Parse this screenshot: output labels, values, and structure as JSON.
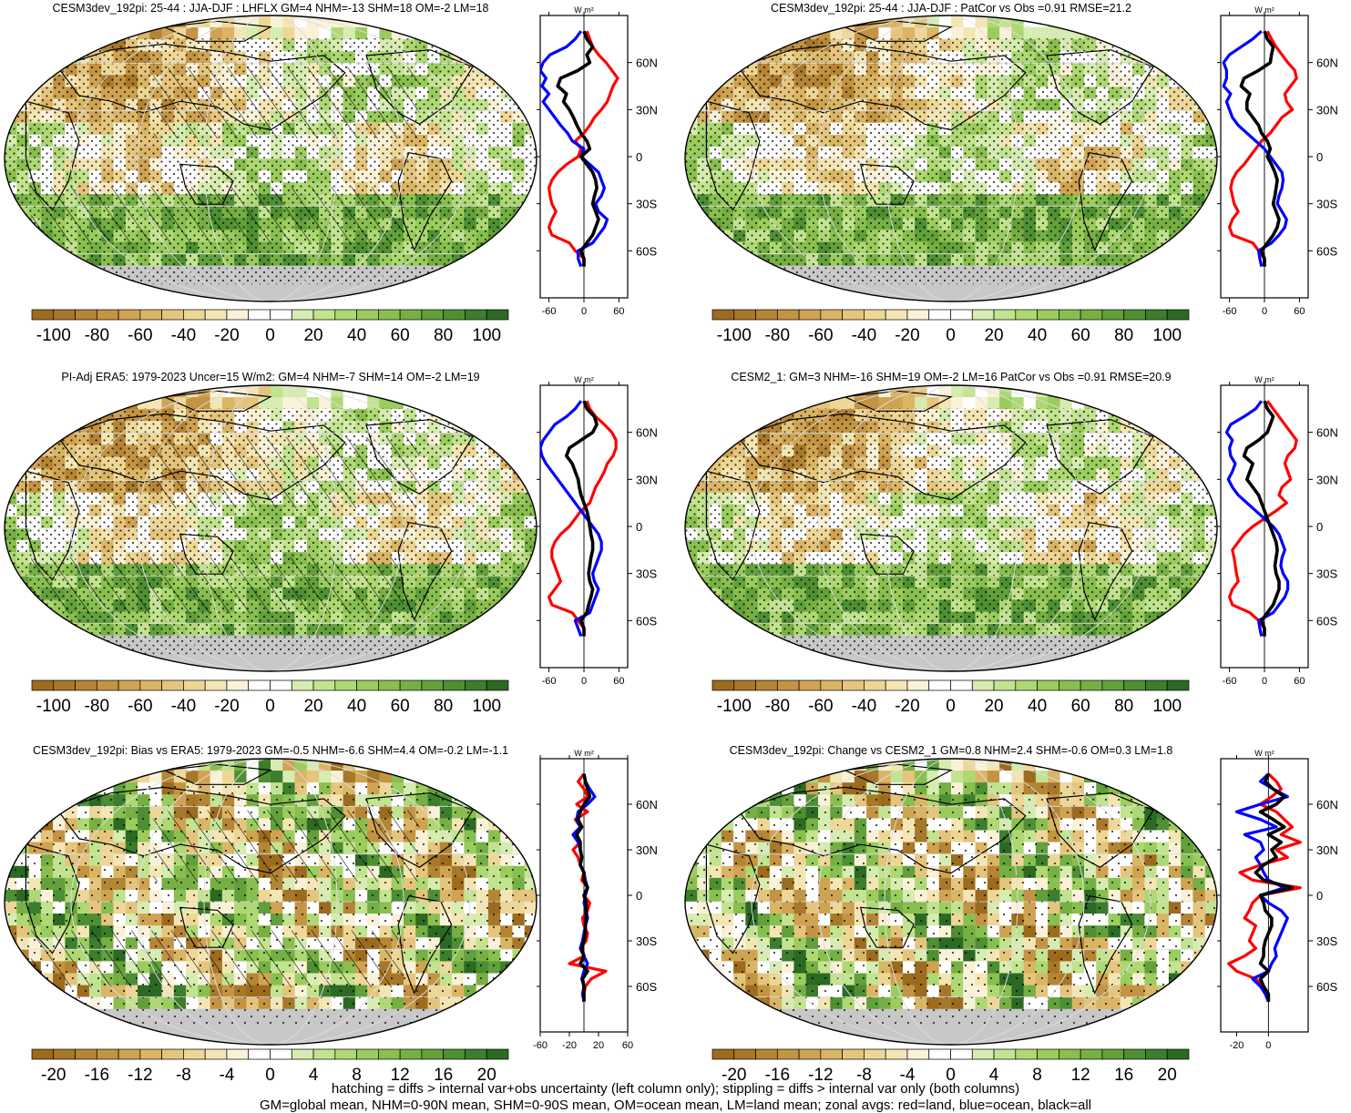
{
  "figure": {
    "footnote_line1": "hatching = diffs > internal var+obs uncertainty (left column only); stippling = diffs > internal var only (both columns)",
    "footnote_line2": "GM=global mean, NHM=0-90N mean, SHM=0-90S mean, OM=ocean mean, LM=land mean; zonal avgs: red=land, blue=ocean, black=all",
    "zonal_units": "W m²"
  },
  "colors": {
    "land_line": "#ff0000",
    "ocean_line": "#0000ff",
    "all_line": "#000000",
    "missing": "#c8c8c8",
    "palette": [
      "#9c6b1e",
      "#a8782a",
      "#b58536",
      "#c39443",
      "#cfa352",
      "#dab565",
      "#e5c57d",
      "#eed796",
      "#f4e6b4",
      "#faf2d8",
      "#ffffff",
      "#ffffff",
      "#d6ecb0",
      "#c2e38f",
      "#aed873",
      "#9bcc5e",
      "#89bf4f",
      "#76b044",
      "#62a03b",
      "#4e8f33",
      "#3c7e2c",
      "#2c6a24"
    ]
  },
  "chart_data": [
    {
      "type": "heatmap",
      "title": "CESM3dev_192pi: 25-44 : JJA-DJF : LHFLX GM=4 NHM=-13 SHM=18 OM=-2 LM=18",
      "hatching": true,
      "stipple": "dense",
      "colorbar": {
        "ticks": [
          "-100",
          "-80",
          "-60",
          "-40",
          "-20",
          "0",
          "20",
          "40",
          "60",
          "80",
          "100"
        ],
        "range": [
          -110,
          110
        ]
      },
      "zonal": {
        "xticks": [
          -60,
          0,
          60
        ],
        "xlim": [
          -75,
          75
        ],
        "yticks": [
          "60N",
          "30N",
          "0",
          "30S",
          "60S"
        ],
        "lat": [
          80,
          75,
          70,
          65,
          60,
          55,
          50,
          45,
          40,
          35,
          30,
          25,
          20,
          15,
          10,
          5,
          0,
          -5,
          -10,
          -15,
          -20,
          -25,
          -30,
          -35,
          -40,
          -45,
          -50,
          -55,
          -60,
          -65,
          -70
        ],
        "land": [
          5,
          10,
          15,
          25,
          38,
          48,
          58,
          50,
          45,
          40,
          30,
          18,
          10,
          0,
          -15,
          -5,
          -10,
          -30,
          -45,
          -55,
          -60,
          -58,
          -55,
          -48,
          -55,
          -60,
          -55,
          -25,
          -15,
          0,
          0
        ],
        "ocean": [
          -5,
          -15,
          -30,
          -58,
          -70,
          -75,
          -65,
          -72,
          -60,
          -70,
          -60,
          -50,
          -40,
          -28,
          -20,
          0,
          -5,
          10,
          25,
          30,
          35,
          30,
          20,
          25,
          40,
          35,
          25,
          15,
          -10,
          -10,
          -5
        ],
        "all": [
          0,
          5,
          15,
          5,
          10,
          -10,
          -40,
          -45,
          -30,
          -35,
          -25,
          -18,
          -12,
          -5,
          5,
          10,
          -5,
          5,
          15,
          20,
          22,
          18,
          15,
          20,
          25,
          20,
          15,
          5,
          -5,
          0,
          0
        ]
      }
    },
    {
      "type": "heatmap",
      "title": "CESM3dev_192pi: 25-44 : JJA-DJF : PatCor vs Obs =0.91 RMSE=21.2",
      "hatching": false,
      "stipple": "dense",
      "colorbar": {
        "ticks": [
          "-100",
          "-80",
          "-60",
          "-40",
          "-20",
          "0",
          "20",
          "40",
          "60",
          "80",
          "100"
        ],
        "range": [
          -110,
          110
        ]
      },
      "zonal": {
        "xticks": [
          -60,
          0,
          60
        ],
        "xlim": [
          -75,
          75
        ],
        "yticks": [
          "60N",
          "30N",
          "0",
          "30S",
          "60S"
        ],
        "lat": [
          80,
          75,
          70,
          65,
          60,
          55,
          50,
          45,
          40,
          35,
          30,
          25,
          20,
          15,
          10,
          5,
          0,
          -5,
          -10,
          -15,
          -20,
          -25,
          -30,
          -35,
          -40,
          -45,
          -50,
          -55,
          -60,
          -65,
          -70
        ],
        "land": [
          5,
          12,
          20,
          30,
          40,
          52,
          55,
          45,
          35,
          38,
          48,
          30,
          20,
          10,
          -5,
          -15,
          -25,
          -35,
          -48,
          -55,
          -58,
          -55,
          -52,
          -45,
          -55,
          -60,
          -55,
          -20,
          -10,
          0,
          0
        ],
        "ocean": [
          -5,
          -20,
          -40,
          -60,
          -70,
          -65,
          -65,
          -70,
          -58,
          -65,
          -60,
          -55,
          -45,
          -30,
          -15,
          0,
          10,
          20,
          30,
          32,
          30,
          25,
          22,
          30,
          38,
          35,
          25,
          12,
          -10,
          -8,
          -5
        ],
        "all": [
          0,
          5,
          15,
          12,
          10,
          -10,
          -35,
          -40,
          -25,
          -30,
          -30,
          -20,
          -10,
          -5,
          5,
          10,
          5,
          12,
          18,
          22,
          20,
          18,
          15,
          20,
          25,
          22,
          15,
          5,
          -5,
          0,
          0
        ]
      }
    },
    {
      "type": "heatmap",
      "title": "PI-Adj ERA5: 1979-2023 Uncer=15 W/m2: GM=4 NHM=-7 SHM=14 OM=-2 LM=19",
      "hatching": true,
      "stipple": "dense",
      "colorbar": {
        "ticks": [
          "-100",
          "-80",
          "-60",
          "-40",
          "-20",
          "0",
          "20",
          "40",
          "60",
          "80",
          "100"
        ],
        "range": [
          -110,
          110
        ]
      },
      "zonal": {
        "xticks": [
          -60,
          0,
          60
        ],
        "xlim": [
          -75,
          75
        ],
        "yticks": [
          "60N",
          "30N",
          "0",
          "30S",
          "60S"
        ],
        "lat": [
          80,
          75,
          70,
          65,
          60,
          55,
          50,
          45,
          40,
          35,
          30,
          25,
          20,
          15,
          10,
          5,
          0,
          -5,
          -10,
          -15,
          -20,
          -25,
          -30,
          -35,
          -40,
          -45,
          -50,
          -55,
          -60,
          -65,
          -70
        ],
        "land": [
          5,
          10,
          20,
          35,
          48,
          55,
          55,
          50,
          40,
          35,
          28,
          20,
          15,
          10,
          -5,
          -15,
          -25,
          -40,
          -50,
          -55,
          -55,
          -50,
          -45,
          -40,
          -50,
          -60,
          -55,
          -20,
          -10,
          0,
          0
        ],
        "ocean": [
          -5,
          -15,
          -30,
          -50,
          -60,
          -70,
          -75,
          -72,
          -65,
          -55,
          -45,
          -35,
          -25,
          -15,
          -5,
          5,
          15,
          25,
          30,
          30,
          25,
          20,
          15,
          18,
          25,
          20,
          15,
          10,
          -15,
          -10,
          -5
        ],
        "all": [
          0,
          5,
          18,
          22,
          15,
          -5,
          -25,
          -30,
          -20,
          -15,
          -10,
          -8,
          -5,
          0,
          5,
          8,
          10,
          12,
          15,
          15,
          12,
          10,
          8,
          10,
          15,
          12,
          8,
          5,
          -5,
          0,
          0
        ]
      }
    },
    {
      "type": "heatmap",
      "title": "CESM2_1: GM=3 NHM=-16 SHM=19 OM=-2 LM=16 PatCor vs Obs =0.91 RMSE=20.9",
      "hatching": false,
      "stipple": "dense",
      "colorbar": {
        "ticks": [
          "-100",
          "-80",
          "-60",
          "-40",
          "-20",
          "0",
          "20",
          "40",
          "60",
          "80",
          "100"
        ],
        "range": [
          -110,
          110
        ]
      },
      "zonal": {
        "xticks": [
          -60,
          0,
          60
        ],
        "xlim": [
          -75,
          75
        ],
        "yticks": [
          "60N",
          "30N",
          "0",
          "30S",
          "60S"
        ],
        "lat": [
          80,
          75,
          70,
          65,
          60,
          55,
          50,
          45,
          40,
          35,
          30,
          25,
          20,
          15,
          10,
          5,
          0,
          -5,
          -10,
          -15,
          -20,
          -25,
          -30,
          -35,
          -40,
          -45,
          -50,
          -55,
          -60,
          -65,
          -70
        ],
        "land": [
          5,
          15,
          25,
          35,
          45,
          55,
          52,
          40,
          35,
          40,
          45,
          30,
          25,
          38,
          20,
          0,
          -20,
          -35,
          -45,
          -55,
          -52,
          -50,
          -48,
          -45,
          -55,
          -60,
          -55,
          -25,
          -10,
          0,
          0
        ],
        "ocean": [
          -5,
          -15,
          -35,
          -58,
          -65,
          -55,
          -60,
          -58,
          -50,
          -55,
          -62,
          -55,
          -45,
          -30,
          -15,
          0,
          15,
          25,
          30,
          35,
          30,
          28,
          32,
          40,
          40,
          35,
          25,
          15,
          -10,
          -8,
          -5
        ],
        "all": [
          0,
          5,
          15,
          10,
          5,
          -10,
          -30,
          -35,
          -20,
          -25,
          -30,
          -20,
          -10,
          -5,
          0,
          5,
          10,
          15,
          20,
          22,
          20,
          18,
          20,
          25,
          25,
          20,
          15,
          5,
          -5,
          0,
          0
        ]
      }
    },
    {
      "type": "heatmap",
      "title": "CESM3dev_192pi: Bias vs ERA5: 1979-2023 GM=-0.5 NHM=-6.6 SHM=4.4 OM=-0.2 LM=-1.1",
      "hatching": true,
      "stipple": "sparse",
      "colorbar": {
        "ticks": [
          "-20",
          "-16",
          "-12",
          "-8",
          "-4",
          "0",
          "4",
          "8",
          "12",
          "16",
          "20"
        ],
        "range": [
          -22,
          22
        ]
      },
      "zonal": {
        "xticks": [
          -60,
          -20,
          20,
          60
        ],
        "xlim": [
          -60,
          60
        ],
        "yticks": [
          "60N",
          "30N",
          "0",
          "30S",
          "60S"
        ],
        "lat": [
          80,
          75,
          70,
          65,
          60,
          55,
          50,
          45,
          40,
          35,
          30,
          25,
          20,
          15,
          10,
          5,
          0,
          -5,
          -10,
          -15,
          -20,
          -25,
          -30,
          -35,
          -40,
          -45,
          -50,
          -55,
          -60,
          -65,
          -70
        ],
        "land": [
          0,
          -8,
          0,
          5,
          -10,
          5,
          -12,
          -5,
          -10,
          -5,
          -15,
          -8,
          -5,
          0,
          -3,
          5,
          0,
          8,
          5,
          -2,
          0,
          5,
          3,
          -5,
          0,
          -20,
          30,
          10,
          2,
          0,
          0
        ],
        "ocean": [
          0,
          2,
          8,
          15,
          5,
          -8,
          -10,
          -5,
          -15,
          -8,
          -5,
          -3,
          -5,
          0,
          2,
          5,
          2,
          0,
          3,
          5,
          2,
          0,
          -2,
          -5,
          0,
          5,
          0,
          -3,
          0,
          -2,
          0
        ],
        "all": [
          0,
          2,
          5,
          8,
          0,
          -5,
          -8,
          -3,
          -10,
          -5,
          -5,
          -3,
          -5,
          0,
          0,
          5,
          0,
          3,
          3,
          3,
          2,
          2,
          0,
          -3,
          0,
          -5,
          5,
          -2,
          0,
          0,
          0
        ]
      }
    },
    {
      "type": "heatmap",
      "title": "CESM3dev_192pi: Change vs CESM2_1 GM=0.8 NHM=2.4 SHM=-0.6 OM=0.3 LM=1.8",
      "hatching": false,
      "stipple": "sparse",
      "colorbar": {
        "ticks": [
          "-20",
          "-16",
          "-12",
          "-8",
          "-4",
          "0",
          "4",
          "8",
          "12",
          "16",
          "20"
        ],
        "range": [
          -22,
          22
        ]
      },
      "zonal": {
        "xticks": [
          -20,
          0
        ],
        "xlim": [
          -30,
          25
        ],
        "yticks": [
          "60N",
          "30N",
          "0",
          "30S",
          "60S"
        ],
        "lat": [
          80,
          75,
          70,
          65,
          60,
          55,
          50,
          45,
          40,
          35,
          30,
          25,
          20,
          15,
          10,
          5,
          0,
          -5,
          -10,
          -15,
          -20,
          -25,
          -30,
          -35,
          -40,
          -45,
          -50,
          -55,
          -60,
          -65,
          -70
        ],
        "land": [
          0,
          5,
          8,
          2,
          -5,
          5,
          10,
          15,
          8,
          20,
          5,
          12,
          -5,
          -18,
          -10,
          20,
          -5,
          -10,
          -12,
          -15,
          -8,
          -10,
          -12,
          -8,
          -15,
          -25,
          -20,
          -8,
          -3,
          0,
          0
        ],
        "ocean": [
          0,
          -5,
          3,
          12,
          -5,
          -20,
          -5,
          5,
          -15,
          -5,
          -3,
          -8,
          -5,
          -3,
          0,
          10,
          -5,
          0,
          8,
          12,
          10,
          8,
          6,
          4,
          5,
          2,
          0,
          -10,
          -5,
          -2,
          0
        ],
        "all": [
          0,
          -2,
          3,
          10,
          5,
          -5,
          3,
          10,
          0,
          8,
          2,
          5,
          -3,
          -8,
          -3,
          15,
          -5,
          -3,
          -2,
          2,
          2,
          0,
          -2,
          -3,
          -3,
          -5,
          0,
          -5,
          -3,
          0,
          0
        ]
      }
    }
  ]
}
